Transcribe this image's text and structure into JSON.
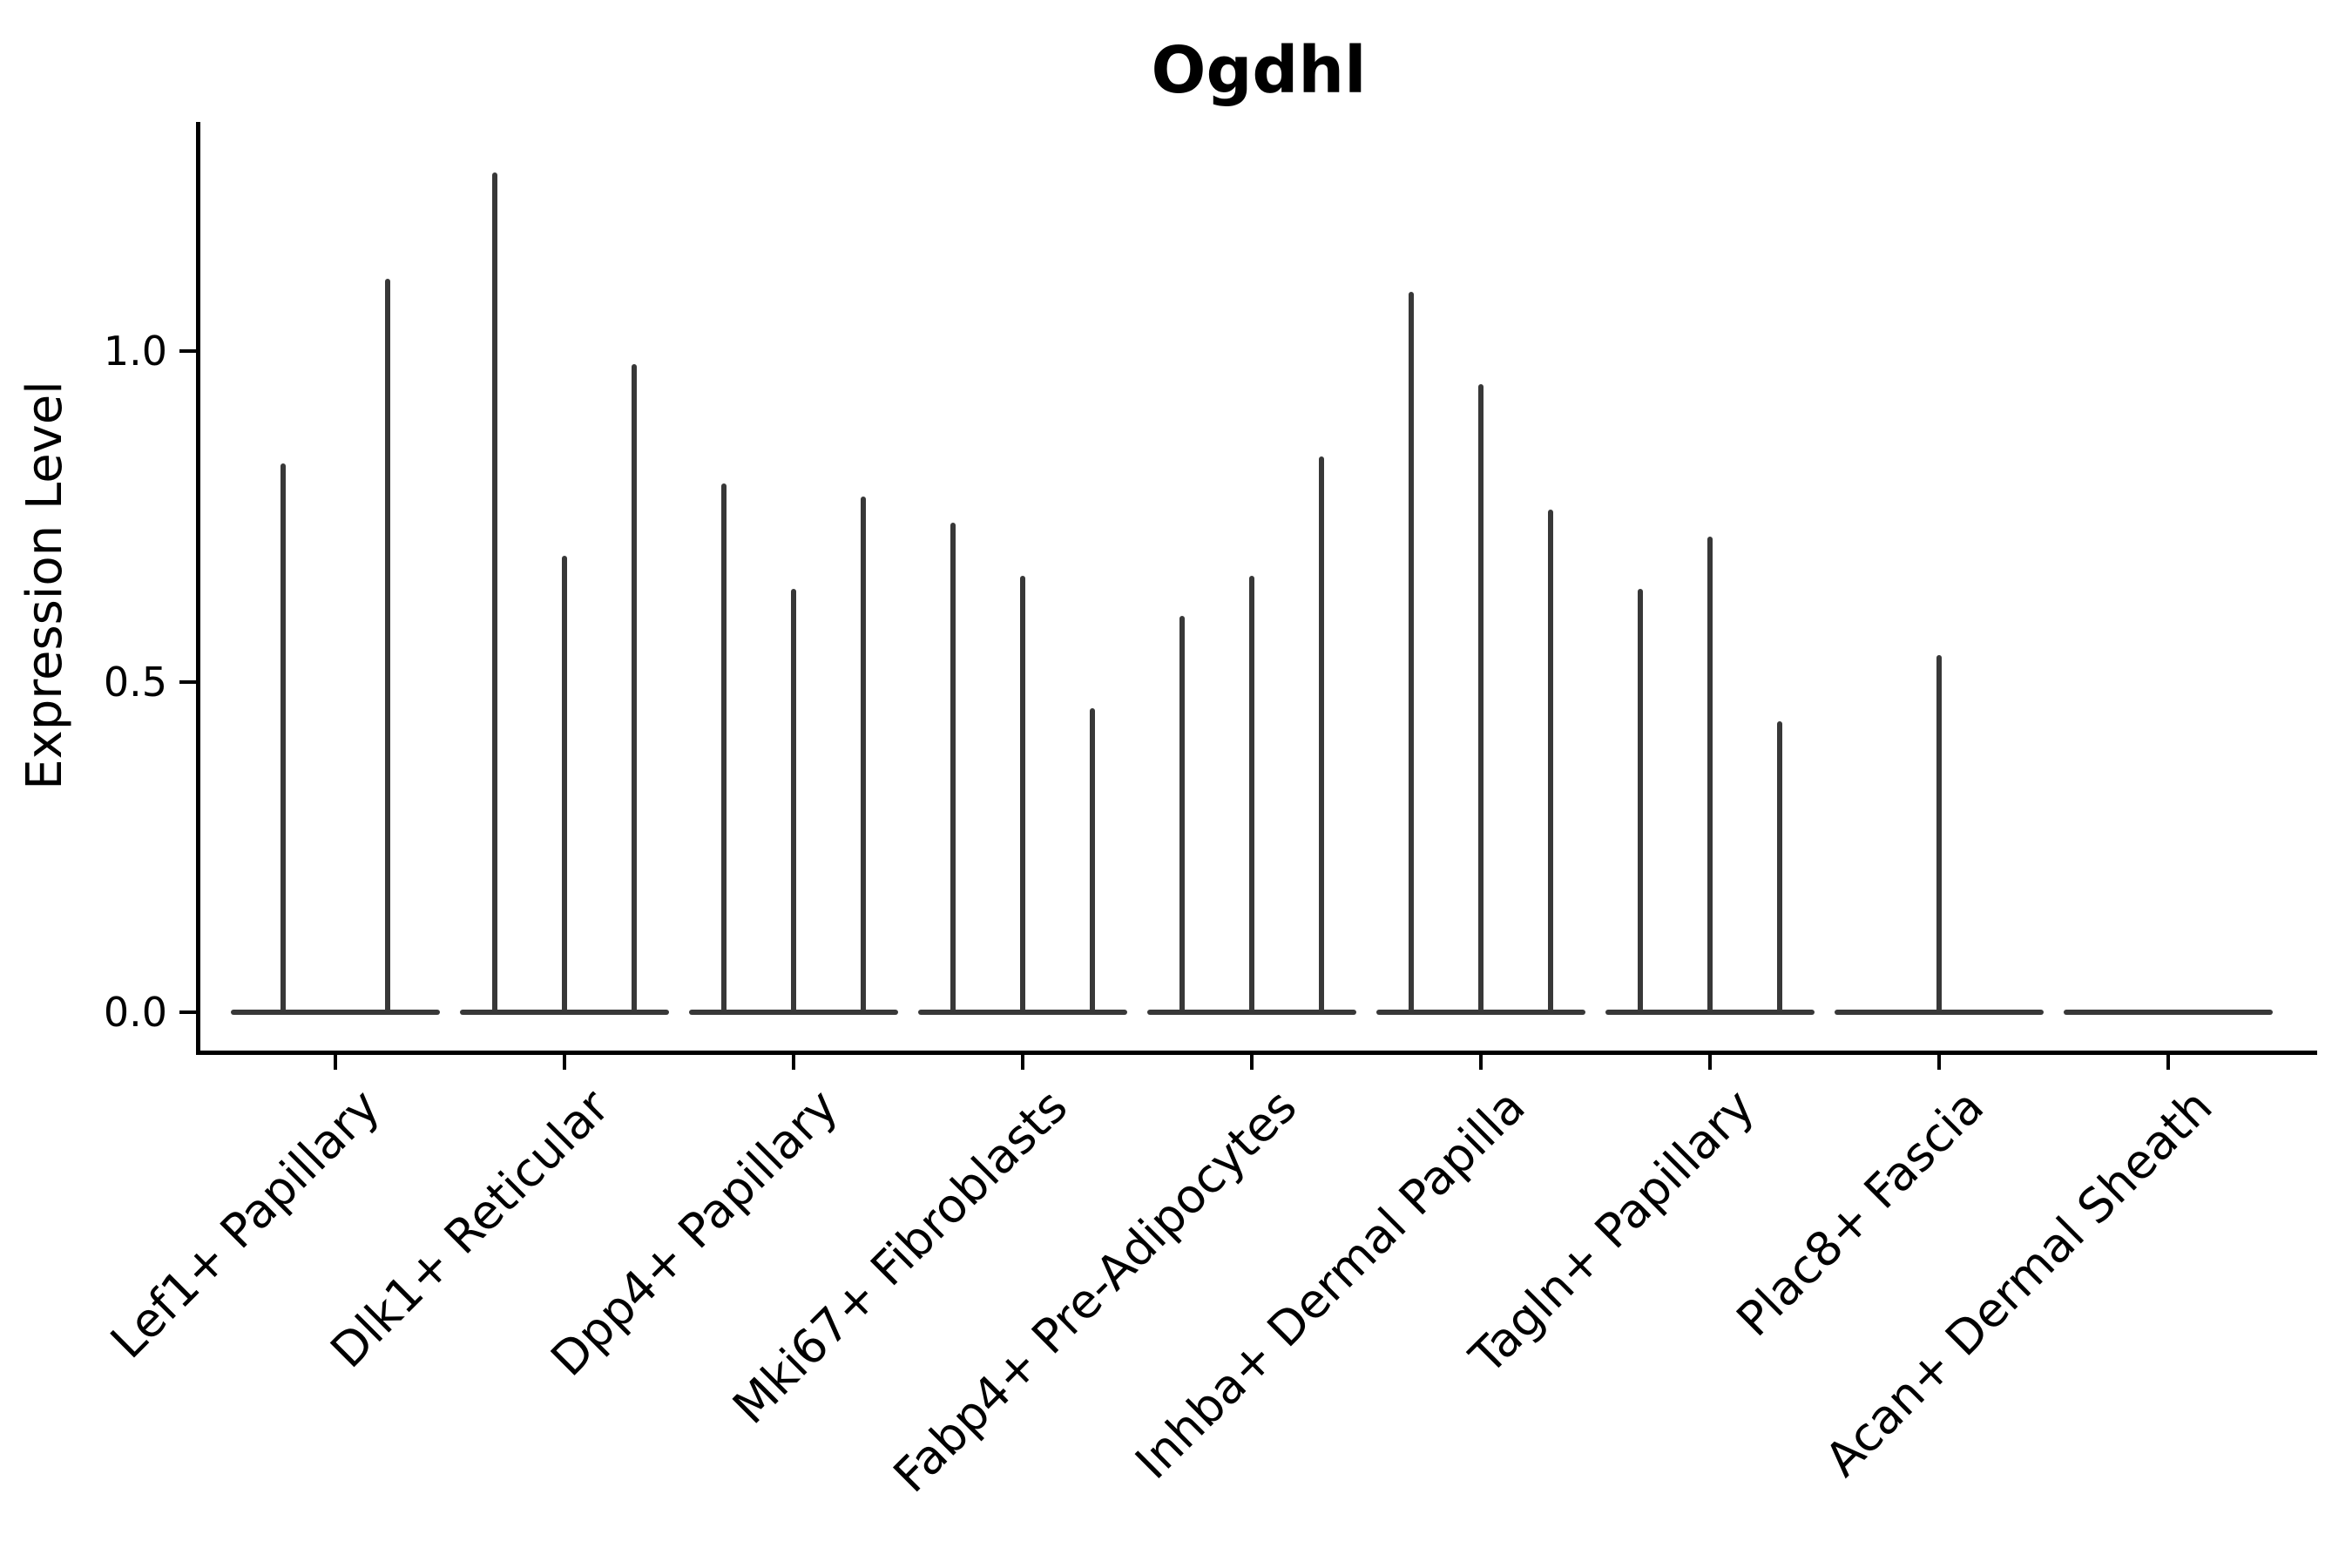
{
  "chart_data": {
    "type": "violin",
    "title": "Ogdhl",
    "xlabel": "",
    "ylabel": "Expression Level",
    "ylim": [
      0,
      1.35
    ],
    "yticks": [
      0.0,
      0.5,
      1.0
    ],
    "ytick_labels": [
      "0.0",
      "0.5",
      "1.0"
    ],
    "grid": "off",
    "legend": "none",
    "categories": [
      "Lef1+ Papillary",
      "Dlk1+ Reticular",
      "Dpp4+ Papillary",
      "Mki67+ Fibroblasts",
      "Fabp4+ Pre-Adipocytes",
      "Inhba+ Dermal Papilla",
      "Tagln+ Papillary",
      "Plac8+ Fascia",
      "Acan+ Dermal Sheath"
    ],
    "violins": [
      {
        "category": "Lef1+ Papillary",
        "max_values": [
          0.83,
          1.11
        ]
      },
      {
        "category": "Dlk1+ Reticular",
        "max_values": [
          1.27,
          0.69,
          0.98
        ]
      },
      {
        "category": "Dpp4+ Papillary",
        "max_values": [
          0.8,
          0.64,
          0.78
        ]
      },
      {
        "category": "Mki67+ Fibroblasts",
        "max_values": [
          0.74,
          0.66,
          0.46
        ]
      },
      {
        "category": "Fabp4+ Pre-Adipocytes",
        "max_values": [
          0.6,
          0.66,
          0.84
        ]
      },
      {
        "category": "Inhba+ Dermal Papilla",
        "max_values": [
          1.09,
          0.95,
          0.76
        ]
      },
      {
        "category": "Tagln+ Papillary",
        "max_values": [
          0.64,
          0.72,
          0.44
        ]
      },
      {
        "category": "Plac8+ Fascia",
        "max_values": [
          0.54
        ]
      },
      {
        "category": "Acan+ Dermal Sheath",
        "max_values": [
          0.0
        ]
      }
    ],
    "colors": {
      "violin": "#383838",
      "axis": "#000000",
      "text": "#000000",
      "background": "#ffffff"
    }
  }
}
